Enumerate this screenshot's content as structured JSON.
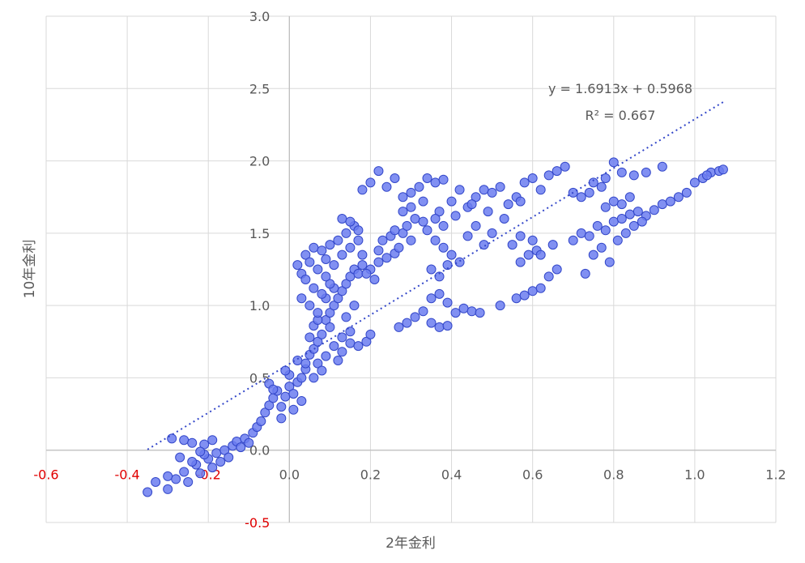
{
  "chart_data": {
    "type": "scatter",
    "xlabel": "2年金利",
    "ylabel": "10年金利",
    "xlim": [
      -0.6,
      1.2
    ],
    "ylim": [
      -0.5,
      3.0
    ],
    "x_ticks": [
      "-0.6",
      "-0.4",
      "-0.2",
      "0.0",
      "0.2",
      "0.4",
      "0.6",
      "0.8",
      "1.0",
      "1.2"
    ],
    "y_ticks": [
      "-0.5",
      "0.0",
      "0.5",
      "1.0",
      "1.5",
      "2.0",
      "2.5",
      "3.0"
    ],
    "negative_tick_color": "#e00000",
    "grid": true,
    "marker_color": "#6b7cf0",
    "trendline": {
      "type": "linear",
      "slope": 1.6913,
      "intercept": 0.5968,
      "x_range": [
        -0.35,
        1.07
      ],
      "equation_label": "y = 1.6913x + 0.5968",
      "r2_label": "R² = 0.667"
    },
    "series": [
      {
        "points": [
          [
            -0.35,
            -0.29
          ],
          [
            -0.33,
            -0.22
          ],
          [
            -0.3,
            -0.27
          ],
          [
            -0.28,
            -0.2
          ],
          [
            -0.26,
            -0.15
          ],
          [
            -0.25,
            -0.22
          ],
          [
            -0.23,
            -0.1
          ],
          [
            -0.22,
            -0.16
          ],
          [
            -0.2,
            -0.06
          ],
          [
            -0.19,
            -0.12
          ],
          [
            -0.18,
            -0.02
          ],
          [
            -0.17,
            -0.08
          ],
          [
            -0.16,
            0.0
          ],
          [
            -0.15,
            -0.05
          ],
          [
            -0.14,
            0.03
          ],
          [
            -0.13,
            0.06
          ],
          [
            -0.12,
            0.02
          ],
          [
            -0.11,
            0.08
          ],
          [
            -0.1,
            0.05
          ],
          [
            -0.09,
            0.12
          ],
          [
            -0.08,
            0.16
          ],
          [
            -0.29,
            0.08
          ],
          [
            -0.26,
            0.07
          ],
          [
            -0.24,
            0.05
          ],
          [
            -0.21,
            0.04
          ],
          [
            -0.19,
            0.07
          ],
          [
            -0.27,
            -0.05
          ],
          [
            -0.24,
            -0.08
          ],
          [
            -0.21,
            -0.03
          ],
          [
            -0.3,
            -0.18
          ],
          [
            -0.22,
            -0.01
          ],
          [
            -0.07,
            0.2
          ],
          [
            -0.06,
            0.26
          ],
          [
            -0.05,
            0.31
          ],
          [
            -0.04,
            0.36
          ],
          [
            -0.03,
            0.41
          ],
          [
            -0.02,
            0.3
          ],
          [
            -0.01,
            0.37
          ],
          [
            0.0,
            0.44
          ],
          [
            0.01,
            0.39
          ],
          [
            0.02,
            0.47
          ],
          [
            0.03,
            0.5
          ],
          [
            0.04,
            0.56
          ],
          [
            0.0,
            0.52
          ],
          [
            -0.02,
            0.22
          ],
          [
            0.01,
            0.28
          ],
          [
            0.03,
            0.34
          ],
          [
            -0.05,
            0.46
          ],
          [
            -0.01,
            0.55
          ],
          [
            0.02,
            0.62
          ],
          [
            -0.04,
            0.42
          ],
          [
            0.04,
            0.6
          ],
          [
            0.05,
            0.66
          ],
          [
            0.06,
            0.7
          ],
          [
            0.07,
            0.75
          ],
          [
            0.08,
            0.8
          ],
          [
            0.06,
            0.86
          ],
          [
            0.09,
            0.9
          ],
          [
            0.1,
            0.95
          ],
          [
            0.11,
            1.0
          ],
          [
            0.12,
            1.05
          ],
          [
            0.13,
            1.1
          ],
          [
            0.14,
            1.15
          ],
          [
            0.15,
            1.2
          ],
          [
            0.16,
            1.25
          ],
          [
            0.17,
            1.22
          ],
          [
            0.18,
            1.28
          ],
          [
            0.07,
            0.6
          ],
          [
            0.09,
            0.65
          ],
          [
            0.11,
            0.72
          ],
          [
            0.13,
            0.78
          ],
          [
            0.15,
            0.82
          ],
          [
            0.08,
            0.55
          ],
          [
            0.12,
            0.62
          ],
          [
            0.1,
            0.85
          ],
          [
            0.14,
            0.92
          ],
          [
            0.16,
            1.0
          ],
          [
            0.05,
            0.78
          ],
          [
            0.07,
            0.9
          ],
          [
            0.09,
            1.05
          ],
          [
            0.11,
            1.12
          ],
          [
            0.13,
            0.68
          ],
          [
            0.06,
            0.5
          ],
          [
            0.15,
            0.74
          ],
          [
            0.17,
            0.72
          ],
          [
            0.19,
            0.75
          ],
          [
            0.2,
            0.8
          ],
          [
            0.02,
            1.28
          ],
          [
            0.03,
            1.22
          ],
          [
            0.04,
            1.35
          ],
          [
            0.05,
            1.3
          ],
          [
            0.06,
            1.4
          ],
          [
            0.07,
            1.25
          ],
          [
            0.08,
            1.38
          ],
          [
            0.09,
            1.32
          ],
          [
            0.1,
            1.42
          ],
          [
            0.11,
            1.28
          ],
          [
            0.12,
            1.45
          ],
          [
            0.13,
            1.35
          ],
          [
            0.14,
            1.5
          ],
          [
            0.15,
            1.4
          ],
          [
            0.16,
            1.55
          ],
          [
            0.17,
            1.45
          ],
          [
            0.18,
            1.35
          ],
          [
            0.13,
            1.6
          ],
          [
            0.15,
            1.58
          ],
          [
            0.17,
            1.52
          ],
          [
            0.04,
            1.18
          ],
          [
            0.06,
            1.12
          ],
          [
            0.08,
            1.08
          ],
          [
            0.1,
            1.15
          ],
          [
            0.03,
            1.05
          ],
          [
            0.05,
            1.0
          ],
          [
            0.07,
            0.95
          ],
          [
            0.09,
            1.2
          ],
          [
            0.2,
            1.25
          ],
          [
            0.22,
            1.3
          ],
          [
            0.24,
            1.33
          ],
          [
            0.26,
            1.36
          ],
          [
            0.27,
            1.4
          ],
          [
            0.23,
            1.45
          ],
          [
            0.25,
            1.48
          ],
          [
            0.28,
            1.5
          ],
          [
            0.3,
            1.45
          ],
          [
            0.21,
            1.18
          ],
          [
            0.19,
            1.22
          ],
          [
            0.22,
            1.38
          ],
          [
            0.26,
            1.52
          ],
          [
            0.29,
            1.55
          ],
          [
            0.31,
            1.6
          ],
          [
            0.33,
            1.58
          ],
          [
            0.28,
            1.65
          ],
          [
            0.3,
            1.68
          ],
          [
            0.18,
            1.8
          ],
          [
            0.2,
            1.85
          ],
          [
            0.22,
            1.93
          ],
          [
            0.24,
            1.82
          ],
          [
            0.26,
            1.88
          ],
          [
            0.28,
            1.75
          ],
          [
            0.3,
            1.78
          ],
          [
            0.32,
            1.82
          ],
          [
            0.34,
            1.88
          ],
          [
            0.36,
            1.85
          ],
          [
            0.38,
            1.87
          ],
          [
            0.4,
            1.72
          ],
          [
            0.42,
            1.8
          ],
          [
            0.44,
            1.68
          ],
          [
            0.46,
            1.75
          ],
          [
            0.48,
            1.8
          ],
          [
            0.5,
            1.78
          ],
          [
            0.52,
            1.82
          ],
          [
            0.54,
            1.7
          ],
          [
            0.56,
            1.75
          ],
          [
            0.58,
            1.85
          ],
          [
            0.6,
            1.88
          ],
          [
            0.62,
            1.8
          ],
          [
            0.64,
            1.9
          ],
          [
            0.66,
            1.93
          ],
          [
            0.68,
            1.96
          ],
          [
            0.7,
            1.78
          ],
          [
            0.72,
            1.75
          ],
          [
            0.33,
            1.72
          ],
          [
            0.37,
            1.65
          ],
          [
            0.41,
            1.62
          ],
          [
            0.45,
            1.7
          ],
          [
            0.49,
            1.65
          ],
          [
            0.53,
            1.6
          ],
          [
            0.57,
            1.72
          ],
          [
            0.34,
            1.52
          ],
          [
            0.36,
            1.45
          ],
          [
            0.38,
            1.4
          ],
          [
            0.4,
            1.35
          ],
          [
            0.42,
            1.3
          ],
          [
            0.44,
            1.48
          ],
          [
            0.46,
            1.55
          ],
          [
            0.48,
            1.42
          ],
          [
            0.5,
            1.5
          ],
          [
            0.35,
            1.25
          ],
          [
            0.37,
            1.2
          ],
          [
            0.39,
            1.28
          ],
          [
            0.36,
            1.6
          ],
          [
            0.38,
            1.55
          ],
          [
            0.27,
            0.85
          ],
          [
            0.29,
            0.88
          ],
          [
            0.31,
            0.92
          ],
          [
            0.33,
            0.96
          ],
          [
            0.35,
            0.88
          ],
          [
            0.37,
            0.85
          ],
          [
            0.39,
            0.86
          ],
          [
            0.41,
            0.95
          ],
          [
            0.43,
            0.98
          ],
          [
            0.45,
            0.96
          ],
          [
            0.47,
            0.95
          ],
          [
            0.35,
            1.05
          ],
          [
            0.37,
            1.08
          ],
          [
            0.39,
            1.02
          ],
          [
            0.52,
            1.0
          ],
          [
            0.56,
            1.05
          ],
          [
            0.58,
            1.07
          ],
          [
            0.6,
            1.1
          ],
          [
            0.62,
            1.12
          ],
          [
            0.64,
            1.2
          ],
          [
            0.66,
            1.25
          ],
          [
            0.57,
            1.3
          ],
          [
            0.59,
            1.35
          ],
          [
            0.61,
            1.38
          ],
          [
            0.55,
            1.42
          ],
          [
            0.57,
            1.48
          ],
          [
            0.6,
            1.45
          ],
          [
            0.62,
            1.35
          ],
          [
            0.65,
            1.42
          ],
          [
            0.7,
            1.45
          ],
          [
            0.72,
            1.5
          ],
          [
            0.74,
            1.48
          ],
          [
            0.76,
            1.55
          ],
          [
            0.78,
            1.52
          ],
          [
            0.8,
            1.58
          ],
          [
            0.82,
            1.6
          ],
          [
            0.84,
            1.63
          ],
          [
            0.86,
            1.65
          ],
          [
            0.88,
            1.62
          ],
          [
            0.9,
            1.66
          ],
          [
            0.92,
            1.7
          ],
          [
            0.94,
            1.72
          ],
          [
            0.96,
            1.75
          ],
          [
            0.98,
            1.78
          ],
          [
            0.73,
            1.22
          ],
          [
            0.75,
            1.35
          ],
          [
            0.77,
            1.4
          ],
          [
            0.79,
            1.3
          ],
          [
            0.81,
            1.45
          ],
          [
            0.83,
            1.5
          ],
          [
            0.85,
            1.55
          ],
          [
            0.87,
            1.58
          ],
          [
            0.78,
            1.68
          ],
          [
            0.8,
            1.72
          ],
          [
            0.82,
            1.7
          ],
          [
            0.84,
            1.75
          ],
          [
            0.75,
            1.85
          ],
          [
            0.78,
            1.88
          ],
          [
            0.8,
            1.99
          ],
          [
            0.82,
            1.92
          ],
          [
            0.85,
            1.9
          ],
          [
            0.88,
            1.92
          ],
          [
            0.92,
            1.96
          ],
          [
            0.74,
            1.78
          ],
          [
            0.77,
            1.82
          ],
          [
            1.0,
            1.85
          ],
          [
            1.02,
            1.88
          ],
          [
            1.04,
            1.92
          ],
          [
            1.06,
            1.93
          ],
          [
            1.07,
            1.94
          ],
          [
            1.03,
            1.9
          ]
        ]
      }
    ]
  }
}
